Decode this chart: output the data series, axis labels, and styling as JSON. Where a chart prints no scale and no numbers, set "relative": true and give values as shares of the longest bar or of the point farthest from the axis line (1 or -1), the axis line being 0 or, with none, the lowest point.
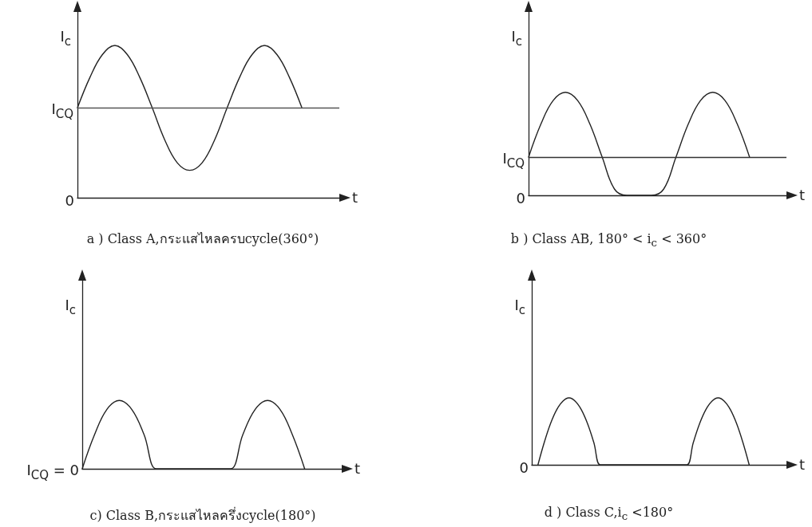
{
  "chart_data": [
    {
      "type": "line",
      "title": "a ) Class A,กระแสไหลครบcycle(360°)",
      "xlabel": "t",
      "ylabel": "I$_{c}$",
      "relative": true,
      "line_style": "solid",
      "categories": [
        null,
        null,
        null,
        null,
        null,
        null,
        null,
        null,
        null,
        null,
        null,
        null,
        null,
        null,
        null,
        null,
        null,
        null,
        null,
        null,
        null,
        null
      ],
      "series": [
        {
          "color": "#222222",
          "values": [
            0.59,
            0.79,
            0.94,
            1,
            0.94,
            0.79,
            0.59,
            0.38,
            0.23,
            0.18,
            0.23,
            0.38,
            0.59,
            0.79,
            0.94,
            1,
            0.94,
            0.79,
            0.59,
            null,
            null,
            null
          ]
        }
      ],
      "ref_lines": [
        {
          "axis": "y",
          "value": 0.59,
          "label": "I$_{CQ}$",
          "color": "#555555"
        }
      ],
      "annotations": [
        "0"
      ]
    },
    {
      "type": "line",
      "title": "b ) Class AB, 180° < i$_{c}$ < 360°",
      "xlabel": "t",
      "ylabel": "I$_{c}$",
      "relative": true,
      "line_style": "solid",
      "categories": [
        null,
        null,
        null,
        null,
        null,
        null,
        null,
        null,
        null,
        null,
        null,
        null,
        null,
        null,
        null,
        null,
        null,
        null,
        null,
        null,
        null,
        null
      ],
      "series": [
        {
          "color": "#222222",
          "values": [
            0.37,
            0.69,
            0.92,
            1,
            0.92,
            0.69,
            0.37,
            0.06,
            0,
            0,
            0,
            0.06,
            0.37,
            0.69,
            0.92,
            1,
            0.92,
            0.69,
            0.37,
            null,
            null,
            null
          ]
        }
      ],
      "ref_lines": [
        {
          "axis": "y",
          "value": 0.37,
          "label": "I$_{CQ}$",
          "color": "#333333"
        }
      ],
      "annotations": [
        "0"
      ]
    },
    {
      "type": "line",
      "title": "c) Class B,กระแสไหลครึ่งcycle(180°)",
      "xlabel": "t",
      "ylabel": "I$_{c}$",
      "relative": true,
      "line_style": "solid",
      "categories": [
        null,
        null,
        null,
        null,
        null,
        null,
        null,
        null,
        null,
        null,
        null,
        null,
        null,
        null,
        null,
        null,
        null,
        null,
        null,
        null,
        null,
        null
      ],
      "series": [
        {
          "color": "#222222",
          "values": [
            0,
            0.5,
            0.87,
            1,
            0.87,
            0.5,
            0,
            0,
            0,
            0,
            0,
            0,
            0,
            0.5,
            0.87,
            1,
            0.87,
            0.5,
            0,
            null,
            null,
            null
          ]
        }
      ],
      "annotations": [
        "I$_{CQ}$ = 0"
      ]
    },
    {
      "type": "line",
      "title": "d ) Class C,i$_{c}$ <180°",
      "xlabel": "t",
      "ylabel": "I$_{c}$",
      "relative": true,
      "line_style": "solid",
      "categories": [
        null,
        null,
        null,
        null,
        null,
        null,
        null,
        null,
        null,
        null,
        null,
        null,
        null,
        null,
        null,
        null,
        null,
        null,
        null,
        null,
        null,
        null,
        null,
        null,
        null,
        null,
        null,
        null,
        null,
        null,
        null,
        null,
        null,
        null,
        null,
        null,
        null,
        null,
        null,
        null,
        null,
        null
      ],
      "series": [
        {
          "color": "#222222",
          "values": [
            null,
            0,
            0.33,
            0.61,
            0.82,
            0.95,
            1,
            0.95,
            0.82,
            0.61,
            0.33,
            0,
            0,
            0,
            0,
            0,
            0,
            0,
            0,
            0,
            0,
            0,
            0,
            0,
            0,
            0,
            0.33,
            0.61,
            0.82,
            0.95,
            1,
            0.95,
            0.82,
            0.61,
            0.33,
            0,
            null,
            null,
            null,
            null,
            null,
            null
          ]
        }
      ],
      "annotations": [
        "0"
      ]
    }
  ]
}
